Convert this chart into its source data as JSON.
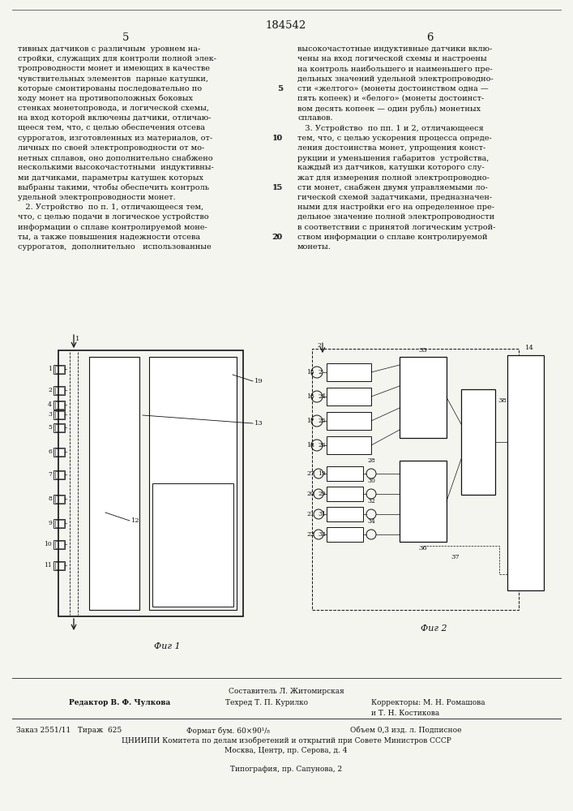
{
  "patent_number": "184542",
  "page_left": "5",
  "page_right": "6",
  "background_color": "#f5f5f0",
  "text_color": "#111111",
  "left_col_lines": [
    "тивных датчиков с различным  уровнем на-",
    "стройки, служащих для контроли полной элек-",
    "тропроводности монет и имеющих в качестве",
    "чувствительных элементов  парные катушки,",
    "которые смонтированы последовательно по",
    "ходу монет на противоположных боковых",
    "стенках монетопровода, и логической схемы,",
    "на вход которой включены датчики, отличаю-",
    "щееся тем, что, с целью обеспечения отсева",
    "суррогатов, изготовленных из материалов, от-",
    "личных по своей электропроводности от мо-",
    "нетных сплавов, оно дополнительно снабжено",
    "несколькими высокочастотными  индуктивны-",
    "ми датчиками, параметры катушек которых",
    "выбраны такими, чтобы обеспечить контроль",
    "удельной электропроводности монет.",
    "   2. Устройство  по п. 1, отличающееся тем,",
    "что, с целью подачи в логическое устройство",
    "информации о сплаве контролируемой моне-",
    "ты, а также повышения надежности отсева",
    "суррогатов,  дополнительно   использованные"
  ],
  "right_col_lines": [
    "высокочастотные индуктивные датчики вклю-",
    "чены на вход логической схемы и настроены",
    "на контроль наибольшего и наименьшего пре-",
    "дельных значений удельной электропроводно-",
    "сти «желтого» (монеты достоинством одна —",
    "пять копеек) и «белого» (монеты достоинст-",
    "вом десять копеек — один рубль) монетных",
    "сплавов.",
    "   3. Устройство  по пп. 1 и 2, отличающееся",
    "тем, что, с целью ускорения процесса опреде-",
    "ления достоинства монет, упрощения конст-",
    "рукции и уменьшения габаритов  устройства,",
    "каждый из датчиков, катушки которого слу-",
    "жат для измерения полной электропроводно-",
    "сти монет, снабжен двумя управляемыми ло-",
    "гической схемой задатчиками, предназначен-",
    "ными для настройки его на определенное пре-",
    "дельное значение полной электропроводности",
    "в соответствии с принятой логическим устрой-",
    "ством информации о сплаве контролируемой",
    "монеты."
  ],
  "line_nums": {
    "4": "5",
    "9": "10",
    "14": "15",
    "19": "20"
  },
  "fig1_caption": "Фиг 1",
  "fig2_caption": "Фиг 2",
  "footer_sostavitel": "Составитель Л. Житомирская",
  "footer_editor": "Редактор В. Ф. Чулкова",
  "footer_tech": "Техред Т. П. Курилко",
  "footer_corr1": "Корректоры: М. Н. Ромашова",
  "footer_corr2": "и Т. Н. Костикова",
  "footer_zakaz": "Заказ 2551/11   Тираж  625",
  "footer_format": "Формат бум. 60×90¹/₈",
  "footer_obem": "Объем 0,3 изд. л. Подписное",
  "footer_cnipi": "ЦНИИПИ Комитета по делам изобретений и открытий при Совете Министров СССР",
  "footer_moscow": "Москва, Центр, пр. Серова, д. 4",
  "footer_typo": "Типография, пр. Сапунова, 2"
}
